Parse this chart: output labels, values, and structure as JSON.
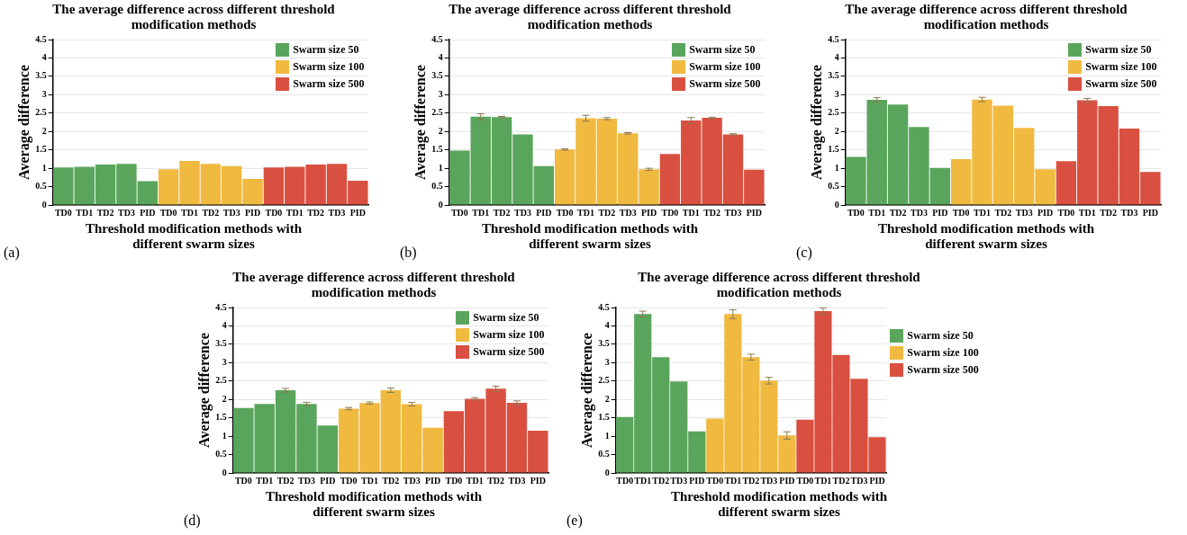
{
  "chart_data": [
    {
      "type": "bar",
      "title": "The average difference across different threshold modification methods",
      "xlabel": "Threshold modification methods with different swarm sizes",
      "ylabel": "Average difference",
      "annotations": [
        "(a)"
      ],
      "categories": [
        "TD0",
        "TD1",
        "TD2",
        "TD3",
        "PID",
        "TD0",
        "TD1",
        "TD2",
        "TD3",
        "PID",
        "TD0",
        "TD1",
        "TD2",
        "TD3",
        "PID"
      ],
      "series": [
        {
          "name": "Swarm size 50",
          "color": "#5aa55c",
          "values": [
            1.02,
            1.04,
            1.1,
            1.12,
            0.65,
            null,
            null,
            null,
            null,
            null,
            null,
            null,
            null,
            null,
            null
          ]
        },
        {
          "name": "Swarm size 100",
          "color": "#f0b940",
          "values": [
            null,
            null,
            null,
            null,
            null,
            0.97,
            1.2,
            1.12,
            1.06,
            0.71,
            null,
            null,
            null,
            null,
            null
          ]
        },
        {
          "name": "Swarm size 500",
          "color": "#d95040",
          "values": [
            null,
            null,
            null,
            null,
            null,
            null,
            null,
            null,
            null,
            null,
            1.02,
            1.04,
            1.1,
            1.12,
            0.66
          ]
        }
      ],
      "ylim": [
        0,
        4.5
      ],
      "yticks": [
        0,
        0.5,
        1,
        1.5,
        2,
        2.5,
        3,
        3.5,
        4,
        4.5
      ],
      "grid": "y",
      "legend": "top right"
    },
    {
      "type": "bar",
      "title": "The average difference across different threshold modification methods",
      "xlabel": "Threshold modification methods with different swarm sizes",
      "ylabel": "Average difference",
      "annotations": [
        "(b)"
      ],
      "categories": [
        "TD0",
        "TD1",
        "TD2",
        "TD3",
        "PID",
        "TD0",
        "TD1",
        "TD2",
        "TD3",
        "PID",
        "TD0",
        "TD1",
        "TD2",
        "TD3",
        "PID"
      ],
      "series": [
        {
          "name": "Swarm size 50",
          "color": "#5aa55c",
          "values": [
            1.48,
            2.4,
            2.39,
            1.92,
            1.06,
            null,
            null,
            null,
            null,
            null,
            null,
            null,
            null,
            null,
            null
          ],
          "errors": [
            null,
            0.08,
            0.02,
            null,
            null,
            null,
            null,
            null,
            null,
            null,
            null,
            null,
            null,
            null,
            null
          ]
        },
        {
          "name": "Swarm size 100",
          "color": "#f0b940",
          "values": [
            null,
            null,
            null,
            null,
            null,
            1.51,
            2.36,
            2.35,
            1.95,
            0.97,
            null,
            null,
            null,
            null,
            null
          ],
          "errors": [
            null,
            null,
            null,
            null,
            null,
            0.02,
            0.08,
            0.03,
            0.02,
            0.03,
            null,
            null,
            null,
            null,
            null
          ]
        },
        {
          "name": "Swarm size 500",
          "color": "#d95040",
          "values": [
            null,
            null,
            null,
            null,
            null,
            null,
            null,
            null,
            null,
            null,
            1.39,
            2.3,
            2.37,
            1.92,
            0.96
          ],
          "errors": [
            null,
            null,
            null,
            null,
            null,
            null,
            null,
            null,
            null,
            null,
            null,
            0.08,
            0.02,
            0.02,
            null
          ]
        }
      ],
      "ylim": [
        0,
        4.5
      ],
      "yticks": [
        0,
        0.5,
        1,
        1.5,
        2,
        2.5,
        3,
        3.5,
        4,
        4.5
      ],
      "grid": "y",
      "legend": "top right"
    },
    {
      "type": "bar",
      "title": "The average difference across different threshold modification methods",
      "xlabel": "Threshold modification methods with different swarm sizes",
      "ylabel": "Average difference",
      "annotations": [
        "(c)"
      ],
      "categories": [
        "TD0",
        "TD1",
        "TD2",
        "TD3",
        "PID",
        "TD0",
        "TD1",
        "TD2",
        "TD3",
        "PID",
        "TD0",
        "TD1",
        "TD2",
        "TD3",
        "PID"
      ],
      "series": [
        {
          "name": "Swarm size 50",
          "color": "#5aa55c",
          "values": [
            1.31,
            2.86,
            2.73,
            2.12,
            1.01,
            null,
            null,
            null,
            null,
            null,
            null,
            null,
            null,
            null,
            null
          ],
          "errors": [
            null,
            0.06,
            null,
            null,
            null,
            null,
            null,
            null,
            null,
            null,
            null,
            null,
            null,
            null,
            null
          ]
        },
        {
          "name": "Swarm size 100",
          "color": "#f0b940",
          "values": [
            null,
            null,
            null,
            null,
            null,
            1.25,
            2.87,
            2.7,
            2.1,
            0.97,
            null,
            null,
            null,
            null,
            null
          ],
          "errors": [
            null,
            null,
            null,
            null,
            null,
            null,
            0.06,
            null,
            null,
            null,
            null,
            null,
            null,
            null,
            null
          ]
        },
        {
          "name": "Swarm size 500",
          "color": "#d95040",
          "values": [
            null,
            null,
            null,
            null,
            null,
            null,
            null,
            null,
            null,
            null,
            1.19,
            2.85,
            2.69,
            2.08,
            0.9
          ],
          "errors": [
            null,
            null,
            null,
            null,
            null,
            null,
            null,
            null,
            null,
            null,
            null,
            0.05,
            null,
            null,
            null
          ]
        }
      ],
      "ylim": [
        0,
        4.5
      ],
      "yticks": [
        0,
        0.5,
        1,
        1.5,
        2,
        2.5,
        3,
        3.5,
        4,
        4.5
      ],
      "grid": "y",
      "legend": "top right"
    },
    {
      "type": "bar",
      "title": "The average difference across different threshold modification methods",
      "xlabel": "Threshold modification methods with different swarm sizes",
      "ylabel": "Average difference",
      "annotations": [
        "(d)"
      ],
      "categories": [
        "TD0",
        "TD1",
        "TD2",
        "TD3",
        "PID",
        "TD0",
        "TD1",
        "TD2",
        "TD3",
        "PID",
        "TD0",
        "TD1",
        "TD2",
        "TD3",
        "PID"
      ],
      "series": [
        {
          "name": "Swarm size 50",
          "color": "#5aa55c",
          "values": [
            1.77,
            1.88,
            2.25,
            1.88,
            1.29,
            null,
            null,
            null,
            null,
            null,
            null,
            null,
            null,
            null,
            null
          ],
          "errors": [
            null,
            null,
            0.05,
            0.04,
            null,
            null,
            null,
            null,
            null,
            null,
            null,
            null,
            null,
            null,
            null
          ]
        },
        {
          "name": "Swarm size 100",
          "color": "#f0b940",
          "values": [
            null,
            null,
            null,
            null,
            null,
            1.75,
            1.9,
            2.25,
            1.87,
            1.23,
            null,
            null,
            null,
            null,
            null
          ],
          "errors": [
            null,
            null,
            null,
            null,
            null,
            0.03,
            0.03,
            0.06,
            0.05,
            null,
            null,
            null,
            null,
            null,
            null
          ]
        },
        {
          "name": "Swarm size 500",
          "color": "#d95040",
          "values": [
            null,
            null,
            null,
            null,
            null,
            null,
            null,
            null,
            null,
            null,
            1.68,
            2.02,
            2.29,
            1.91,
            1.15
          ],
          "errors": [
            null,
            null,
            null,
            null,
            null,
            null,
            null,
            null,
            null,
            null,
            null,
            0.03,
            0.07,
            0.05,
            null
          ]
        }
      ],
      "ylim": [
        0,
        4.5
      ],
      "yticks": [
        0,
        0.5,
        1,
        1.5,
        2,
        2.5,
        3,
        3.5,
        4,
        4.5
      ],
      "grid": "y",
      "legend": "top right"
    },
    {
      "type": "bar",
      "title": "The average difference across different threshold modification methods",
      "xlabel": "Threshold modification methods with different swarm sizes",
      "ylabel": "Average difference",
      "annotations": [
        "(e)"
      ],
      "categories": [
        "TD0",
        "TD1",
        "TD2",
        "TD3",
        "PID",
        "TD0",
        "TD1",
        "TD2",
        "TD3",
        "PID",
        "TD0",
        "TD1",
        "TD2",
        "TD3",
        "PID"
      ],
      "series": [
        {
          "name": "Swarm size 50",
          "color": "#5aa55c",
          "values": [
            1.52,
            4.32,
            3.15,
            2.49,
            1.13,
            null,
            null,
            null,
            null,
            null,
            null,
            null,
            null,
            null,
            null
          ],
          "errors": [
            null,
            0.08,
            null,
            null,
            null,
            null,
            null,
            null,
            null,
            null,
            null,
            null,
            null,
            null,
            null
          ]
        },
        {
          "name": "Swarm size 100",
          "color": "#f0b940",
          "values": [
            null,
            null,
            null,
            null,
            null,
            1.48,
            4.32,
            3.15,
            2.51,
            1.02,
            null,
            null,
            null,
            null,
            null
          ],
          "errors": [
            null,
            null,
            null,
            null,
            null,
            null,
            0.12,
            0.08,
            0.09,
            0.1,
            null,
            null,
            null,
            null,
            null
          ]
        },
        {
          "name": "Swarm size 500",
          "color": "#d95040",
          "values": [
            null,
            null,
            null,
            null,
            null,
            null,
            null,
            null,
            null,
            null,
            1.45,
            4.4,
            3.21,
            2.56,
            0.97
          ],
          "errors": [
            null,
            null,
            null,
            null,
            null,
            null,
            null,
            null,
            null,
            null,
            null,
            0.09,
            null,
            null,
            null
          ]
        }
      ],
      "ylim": [
        0,
        4.5
      ],
      "yticks": [
        0,
        0.5,
        1,
        1.5,
        2,
        2.5,
        3,
        3.5,
        4,
        4.5
      ],
      "grid": "y",
      "legend": "right"
    }
  ]
}
